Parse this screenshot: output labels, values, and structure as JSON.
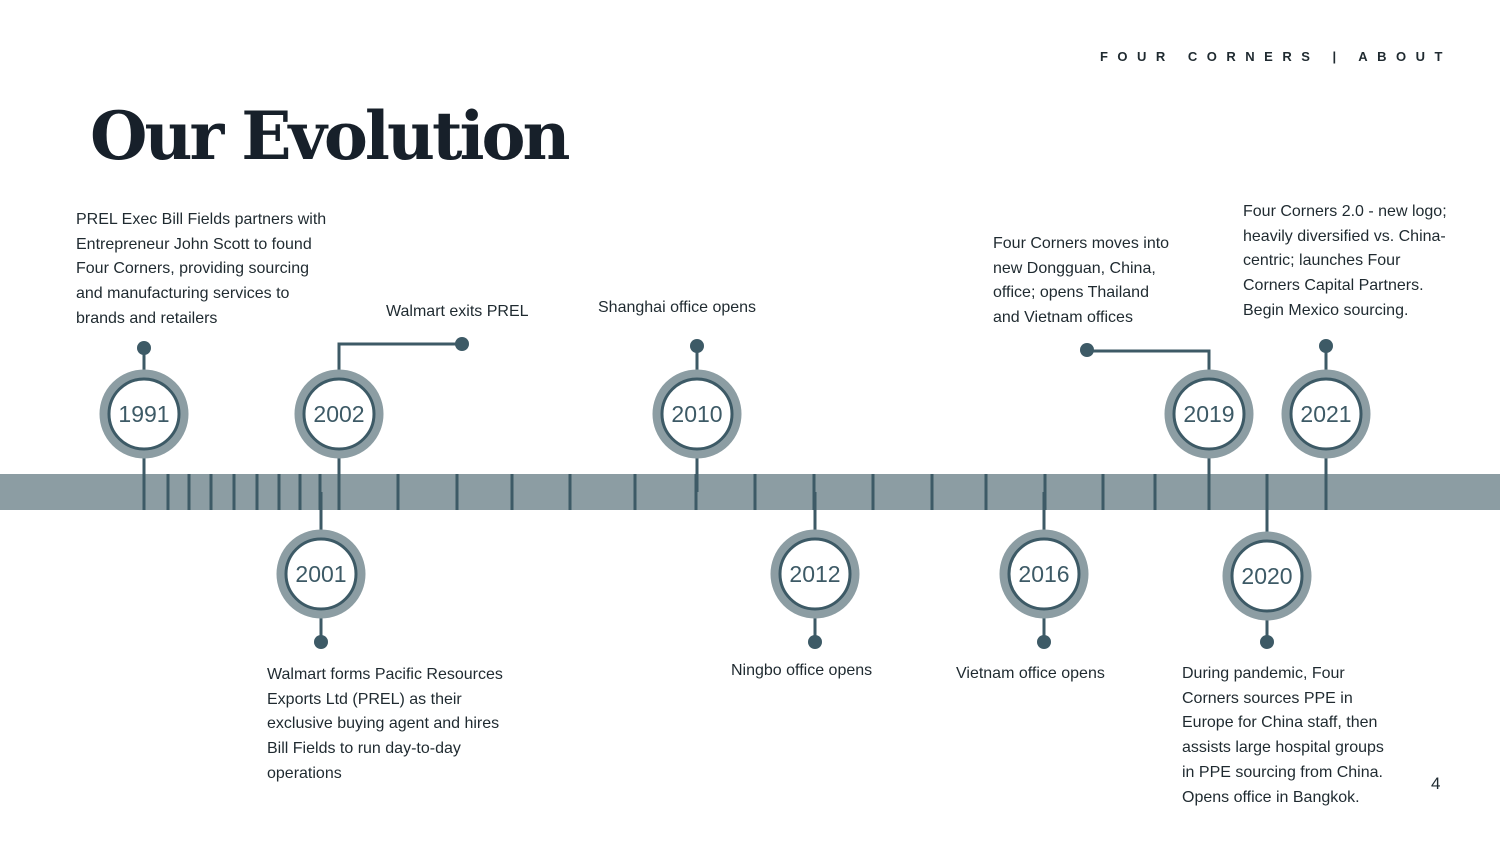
{
  "header": {
    "text": "FOUR CORNERS | ABOUT"
  },
  "title": "Our Evolution",
  "page_number": "4",
  "colors": {
    "track": "#8c9da3",
    "accent": "#3d5a66",
    "ring": "#8c9da3",
    "text": "#1f2a30"
  },
  "milestones": [
    {
      "year": "1991",
      "text": "PREL Exec Bill Fields partners with\nEntrepreneur John Scott to found\nFour Corners, providing sourcing\nand manufacturing services to\nbrands and retailers"
    },
    {
      "year": "2001",
      "text": "Walmart forms Pacific Resources\nExports Ltd (PREL) as their\nexclusive buying agent and hires\nBill Fields to run day-to-day\noperations"
    },
    {
      "year": "2002",
      "text": "Walmart exits PREL"
    },
    {
      "year": "2010",
      "text": "Shanghai office opens"
    },
    {
      "year": "2012",
      "text": "Ningbo office opens"
    },
    {
      "year": "2016",
      "text": "Vietnam office opens"
    },
    {
      "year": "2019",
      "text": "Four Corners moves into\nnew Dongguan, China,\noffice; opens Thailand\nand Vietnam offices"
    },
    {
      "year": "2020",
      "text": "During pandemic, Four\nCorners sources PPE in\nEurope for China staff, then\nassists large hospital groups\nin PPE sourcing from China.\nOpens office in Bangkok."
    },
    {
      "year": "2021",
      "text": "Four Corners 2.0 - new logo;\nheavily diversified vs. China-\ncentric; launches Four\nCorners Capital Partners.\nBegin Mexico sourcing."
    }
  ]
}
